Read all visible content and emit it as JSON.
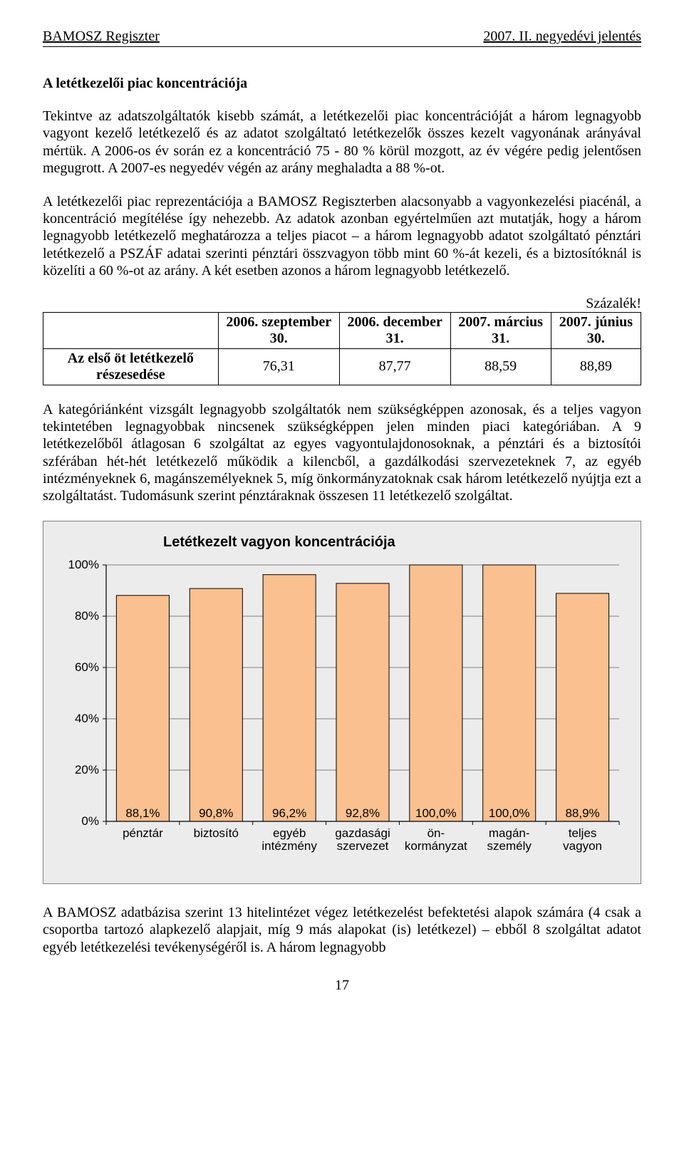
{
  "header": {
    "left": "BAMOSZ Regiszter",
    "right": "2007. II. negyedévi jelentés"
  },
  "section_title": "A letétkezelői piac koncentrációja",
  "para1": "Tekintve az adatszolgáltatók kisebb számát, a letétkezelői piac koncentrációját a három legnagyobb vagyont kezelő letétkezelő és az adatot szolgáltató letétkezelők összes kezelt vagyonának arányával mértük. A 2006-os év során ez a koncentráció 75 - 80 % körül mozgott, az év végére pedig jelentősen megugrott. A 2007-es negyedév végén az arány meghaladta a 88 %-ot.",
  "para2": "A letétkezelői piac reprezentációja a BAMOSZ Regiszterben alacsonyabb a vagyonkezelési piacénál, a koncentráció megítélése így nehezebb. Az adatok azonban egyértelműen azt mutatják, hogy a három legnagyobb letétkezelő meghatározza a teljes piacot – a három legnagyobb adatot szolgáltató pénztári letétkezelő a PSZÁF adatai szerinti pénztári összvagyon több mint 60 %-át kezeli, és a biztosítóknál is közelíti a 60 %-ot az arány. A két esetben azonos a három legnagyobb letétkezelő.",
  "pct_label": "Százalék!",
  "table": {
    "row_header": "Az első öt letétkezelő részesedése",
    "cols": [
      "2006. szeptember 30.",
      "2006. december 31.",
      "2007. március 31.",
      "2007. június 30."
    ],
    "row": [
      "76,31",
      "87,77",
      "88,59",
      "88,89"
    ]
  },
  "para3": "A kategóriánként vizsgált legnagyobb szolgáltatók nem szükségképpen azonosak, és a teljes vagyon tekintetében legnagyobbak nincsenek szükségképpen jelen minden piaci kategóriában. A 9 letétkezelőből átlagosan 6 szolgáltat az egyes vagyontulajdonosoknak, a pénztári és a biztosítói szférában hét-hét letétkezelő működik a kilencből, a gazdálkodási szervezeteknek 7, az egyéb intézményeknek 6, magánszemélyeknek 5, míg önkormányzatoknak csak három letétkezelő nyújtja ezt a szolgáltatást. Tudomásunk szerint pénztáraknak összesen 11 letétkezelő szolgáltat.",
  "chart": {
    "type": "bar",
    "title": "Letétkezelt vagyon koncentrációja",
    "categories": [
      "pénztár",
      "biztosító",
      "egyéb intézmény",
      "gazdasági szervezet",
      "ön-kormányzat",
      "magán-személy",
      "teljes vagyon"
    ],
    "values": [
      88.1,
      90.8,
      96.2,
      92.8,
      100.0,
      100.0,
      88.9
    ],
    "value_labels": [
      "88,1%",
      "90,8%",
      "96,2%",
      "92,8%",
      "100,0%",
      "100,0%",
      "88,9%"
    ],
    "bar_color": "#fac090",
    "bar_border": "#000000",
    "background_color": "#ececec",
    "grid_color": "#808080",
    "axis_color": "#000000",
    "ylim": [
      0,
      100
    ],
    "ytick_step": 20,
    "ytick_labels": [
      "0%",
      "20%",
      "40%",
      "60%",
      "80%",
      "100%"
    ],
    "label_fontsize": 17,
    "value_label_fontsize": 17,
    "title_fontsize": 20,
    "bar_width_ratio": 0.72
  },
  "para4": "A BAMOSZ adatbázisa szerint 13 hitelintézet végez letétkezelést befektetési alapok számára (4 csak a csoportba tartozó alapkezelő alapjait, míg 9 más alapokat (is) letétkezel) – ebből 8 szolgáltat adatot egyéb letétkezelési tevékenységéről is. A három legnagyobb",
  "page_number": "17"
}
